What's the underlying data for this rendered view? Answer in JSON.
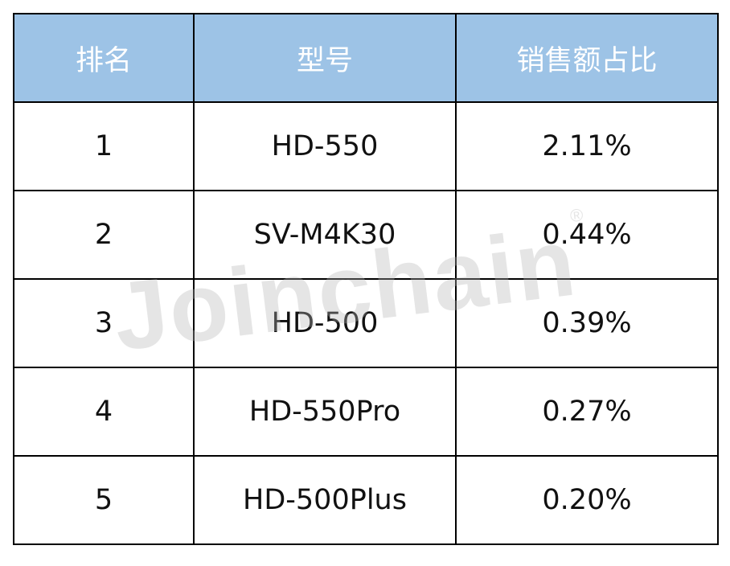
{
  "chart_data": {
    "type": "table",
    "columns": [
      "排名",
      "型号",
      "销售额占比"
    ],
    "rows": [
      [
        "1",
        "HD-550",
        "2.11%"
      ],
      [
        "2",
        "SV-M4K30",
        "0.44%"
      ],
      [
        "3",
        "HD-500",
        "0.39%"
      ],
      [
        "4",
        "HD-550Pro",
        "0.27%"
      ],
      [
        "5",
        "HD-500Plus",
        "0.20%"
      ]
    ],
    "header_color": "#9DC3E6",
    "header_text_color": "#FFFFFF"
  },
  "watermark": {
    "text": "Joinchain",
    "mark": "®"
  }
}
